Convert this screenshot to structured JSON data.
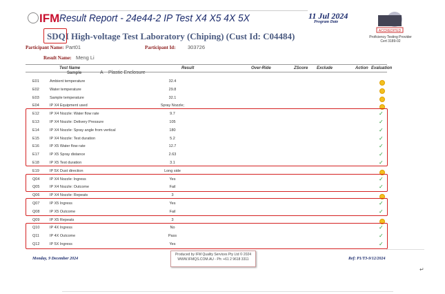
{
  "header": {
    "logo": "IFM",
    "title": "Result Report - 24e44-2 IP Test X4 X5 4X 5X",
    "date": "11 Jul 2024",
    "date_label": "Program Date",
    "accreditation": "ACCREDITED",
    "accreditation_text": "Proficiency Testing Provider Cert 3189-02"
  },
  "lab": {
    "prefix": "SDQI",
    "name": "High-voltage Test Laboratory (Chiping) (Cust Id: C04484)"
  },
  "participant": {
    "name_label": "Participant Name:",
    "name": "Part01",
    "id_label": "Participant Id:",
    "id": "303726",
    "result_label": "Result Name:",
    "result_name": "Meng Li"
  },
  "columns": {
    "test_name": "Test Name",
    "result": "Result",
    "override": "Over-Ride",
    "zscore": "ZScore",
    "exclude": "Exclude",
    "action": "Action",
    "evaluation": "Evaluation"
  },
  "sample": {
    "label": "Sample",
    "id": "A",
    "desc": "Plastic Enclosure"
  },
  "rows": [
    {
      "code": "E01",
      "name": "Ambient temperature",
      "result": "32.4",
      "eval": "warning"
    },
    {
      "code": "E02",
      "name": "Water temperature",
      "result": "29.8",
      "eval": "warning"
    },
    {
      "code": "E03",
      "name": "Sample temperature",
      "result": "32.1",
      "eval": "warning"
    },
    {
      "code": "E04",
      "name": "IP X4 Equipment used",
      "result": "Spray Nozzle;",
      "eval": "warning"
    },
    {
      "code": "E12",
      "name": "IP X4 Nozzle: Water flow rate",
      "result": "9.7",
      "eval": "ok"
    },
    {
      "code": "E13",
      "name": "IP X4 Nozzle: Delivery Pressure",
      "result": "105",
      "eval": "ok"
    },
    {
      "code": "E14",
      "name": "IP X4 Nozzle: Spray angle from vertical",
      "result": "180",
      "eval": "ok"
    },
    {
      "code": "E15",
      "name": "IP X4 Nozzle: Test duration",
      "result": "5.2",
      "eval": "ok"
    },
    {
      "code": "E16",
      "name": "IP X5 Water flow rate",
      "result": "12.7",
      "eval": "ok"
    },
    {
      "code": "E17",
      "name": "IP X5 Spray distance",
      "result": "2.63",
      "eval": "ok"
    },
    {
      "code": "E18",
      "name": "IP X5 Test duration",
      "result": "3.1",
      "eval": "ok"
    },
    {
      "code": "E19",
      "name": "IP 5X Dust direction",
      "result": "Long side",
      "eval": "warning"
    },
    {
      "code": "Q04",
      "name": "IP X4 Nozzle: Ingress",
      "result": "Yes",
      "eval": "ok"
    },
    {
      "code": "Q05",
      "name": "IP X4 Nozzle: Outcome",
      "result": "Fail",
      "eval": "ok"
    },
    {
      "code": "Q06",
      "name": "IP X4 Nozzle: Repeats",
      "result": "3",
      "eval": "warning"
    },
    {
      "code": "Q07",
      "name": "IP X5 Ingress",
      "result": "Yes",
      "eval": "ok"
    },
    {
      "code": "Q08",
      "name": "IP X5 Outcome",
      "result": "Fail",
      "eval": "ok"
    },
    {
      "code": "Q09",
      "name": "IP X5 Repeats",
      "result": "3",
      "eval": "warning"
    },
    {
      "code": "Q10",
      "name": "IP 4X Ingress",
      "result": "No",
      "eval": "ok"
    },
    {
      "code": "Q11",
      "name": "IP 4X Outcome",
      "result": "Pass",
      "eval": "ok"
    },
    {
      "code": "Q12",
      "name": "IP 5X Ingress",
      "result": "Yes",
      "eval": "ok"
    }
  ],
  "footer": {
    "date": "Monday, 9 December 2024",
    "produced_line1": "Produced by IFM Quality Services Pty Ltd © 2024",
    "produced_line2": "WWW.IFMQS.COM.AU - Ph: +61 2 9618 3311",
    "ref": "Ref: P1/T3-9/12/2024",
    "mark": "↵"
  },
  "colors": {
    "highlight": "#d42020",
    "ok": "#2a9a3a",
    "warning": "#f3c020",
    "title": "#1a2a6c"
  }
}
